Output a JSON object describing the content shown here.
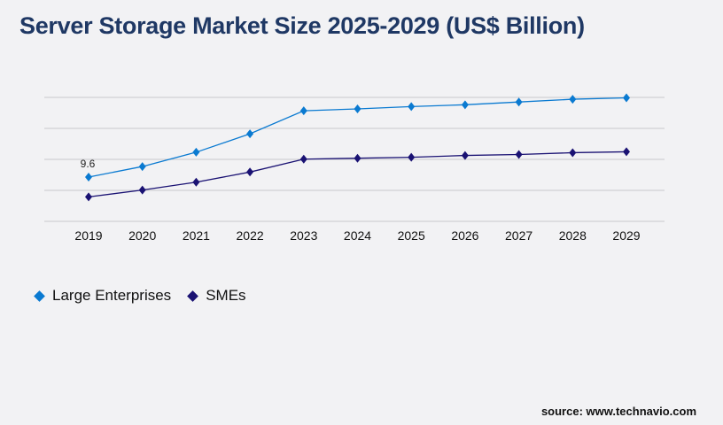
{
  "chart_data": {
    "type": "line",
    "title": "Server Storage Market Size 2025-2029 (US$ Billion)",
    "xlabel": "",
    "ylabel": "",
    "categories": [
      "2019",
      "2020",
      "2021",
      "2022",
      "2023",
      "2024",
      "2025",
      "2026",
      "2027",
      "2028",
      "2029"
    ],
    "ylim": [
      0,
      26.9
    ],
    "grid": true,
    "y_tick_labels_shown": false,
    "legend_placement": "bottom-left",
    "series": [
      {
        "name": "Large Enterprises",
        "color": "#0a7ad1",
        "values": [
          9.6,
          11.9,
          15.0,
          19.0,
          24.0,
          24.4,
          24.9,
          25.3,
          25.9,
          26.5,
          26.8
        ]
      },
      {
        "name": "SMEs",
        "color": "#1a1273",
        "values": [
          5.3,
          6.8,
          8.5,
          10.7,
          13.5,
          13.7,
          13.9,
          14.3,
          14.5,
          14.9,
          15.1
        ]
      }
    ],
    "annotations": [
      {
        "series": "Large Enterprises",
        "category": "2019",
        "text": "9.6"
      }
    ]
  },
  "source": "source: www.technavio.com"
}
